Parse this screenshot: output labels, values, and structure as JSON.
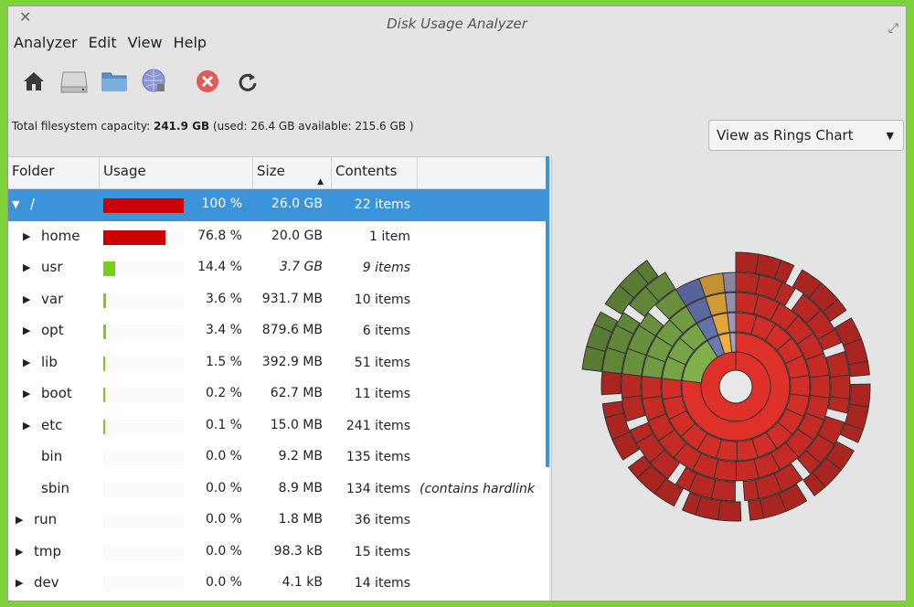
{
  "window": {
    "title": "Disk Usage Analyzer"
  },
  "menu": [
    "Analyzer",
    "Edit",
    "View",
    "Help"
  ],
  "toolbar": {
    "icons": [
      "home-icon",
      "hard-disk-icon",
      "folder-icon",
      "network-icon",
      "stop-icon",
      "refresh-icon"
    ]
  },
  "capacity": {
    "prefix": "Total filesystem capacity:",
    "total": "241.9 GB",
    "used_label": "(used:",
    "used": "26.4 GB",
    "available_label": "available:",
    "available": "215.6 GB",
    "suffix": ")"
  },
  "view_select": {
    "value": "View as Rings Chart"
  },
  "columns": {
    "folder": "Folder",
    "usage": "Usage",
    "size": "Size",
    "contents": "Contents"
  },
  "rows": [
    {
      "name": "/",
      "usage_fraction": 1.0,
      "pct": "100 %",
      "size": "26.0 GB",
      "contents": "22 items",
      "expanded": true,
      "selected": true,
      "indent": 0,
      "bar_color": "#cc0000"
    },
    {
      "name": "home",
      "usage_fraction": 0.768,
      "pct": "76.8 %",
      "size": "20.0 GB",
      "contents": "1 item",
      "expander": true,
      "indent": 1,
      "bar_color": "#cc0000"
    },
    {
      "name": "usr",
      "usage_fraction": 0.144,
      "pct": "14.4 %",
      "size": "3.7 GB",
      "contents": "9 items",
      "expander": true,
      "indent": 1,
      "bar_color": "#73d216",
      "italic_contents": true
    },
    {
      "name": "var",
      "usage_fraction": 0.036,
      "pct": "3.6 %",
      "size": "931.7 MB",
      "contents": "10 items",
      "expander": true,
      "indent": 1,
      "bar_color": "#73d216"
    },
    {
      "name": "opt",
      "usage_fraction": 0.034,
      "pct": "3.4 %",
      "size": "879.6 MB",
      "contents": "6 items",
      "expander": true,
      "indent": 1,
      "bar_color": "#73d216"
    },
    {
      "name": "lib",
      "usage_fraction": 0.015,
      "pct": "1.5 %",
      "size": "392.9 MB",
      "contents": "51 items",
      "expander": true,
      "indent": 1,
      "bar_color": "#73d216"
    },
    {
      "name": "boot",
      "usage_fraction": 0.002,
      "pct": "0.2 %",
      "size": "62.7 MB",
      "contents": "11 items",
      "expander": true,
      "indent": 1,
      "bar_color": "#73d216"
    },
    {
      "name": "etc",
      "usage_fraction": 0.001,
      "pct": "0.1 %",
      "size": "15.0 MB",
      "contents": "241 items",
      "expander": true,
      "indent": 1,
      "bar_color": "#73d216"
    },
    {
      "name": "bin",
      "usage_fraction": 0.0,
      "pct": "0.0 %",
      "size": "9.2 MB",
      "contents": "135 items",
      "expander": false,
      "indent": 1,
      "bar_color": "#73d216"
    },
    {
      "name": "sbin",
      "usage_fraction": 0.0,
      "pct": "0.0 %",
      "size": "8.9 MB",
      "contents": "134 items",
      "expander": false,
      "indent": 1,
      "bar_color": "#73d216",
      "extra": "(contains hardlink"
    },
    {
      "name": "run",
      "usage_fraction": 0.0,
      "pct": "0.0 %",
      "size": "1.8 MB",
      "contents": "36 items",
      "expander": true,
      "indent": 0,
      "bar_color": "#73d216"
    },
    {
      "name": "tmp",
      "usage_fraction": 0.0,
      "pct": "0.0 %",
      "size": "98.3 kB",
      "contents": "15 items",
      "expander": true,
      "indent": 0,
      "bar_color": "#73d216"
    },
    {
      "name": "dev",
      "usage_fraction": 0.0,
      "pct": "0.0 %",
      "size": "4.1 kB",
      "contents": "14 items",
      "expander": true,
      "indent": 0,
      "bar_color": "#73d216"
    }
  ],
  "rings": {
    "level1": [
      {
        "name": "home",
        "fraction": 0.768,
        "color": "#e0302a"
      },
      {
        "name": "usr",
        "fraction": 0.144,
        "color": "#7fb04a"
      },
      {
        "name": "var",
        "fraction": 0.036,
        "color": "#6a78b8"
      },
      {
        "name": "opt",
        "fraction": 0.034,
        "color": "#f0b13a"
      },
      {
        "name": "other",
        "fraction": 0.018,
        "color": "#a8a1c6"
      }
    ]
  }
}
